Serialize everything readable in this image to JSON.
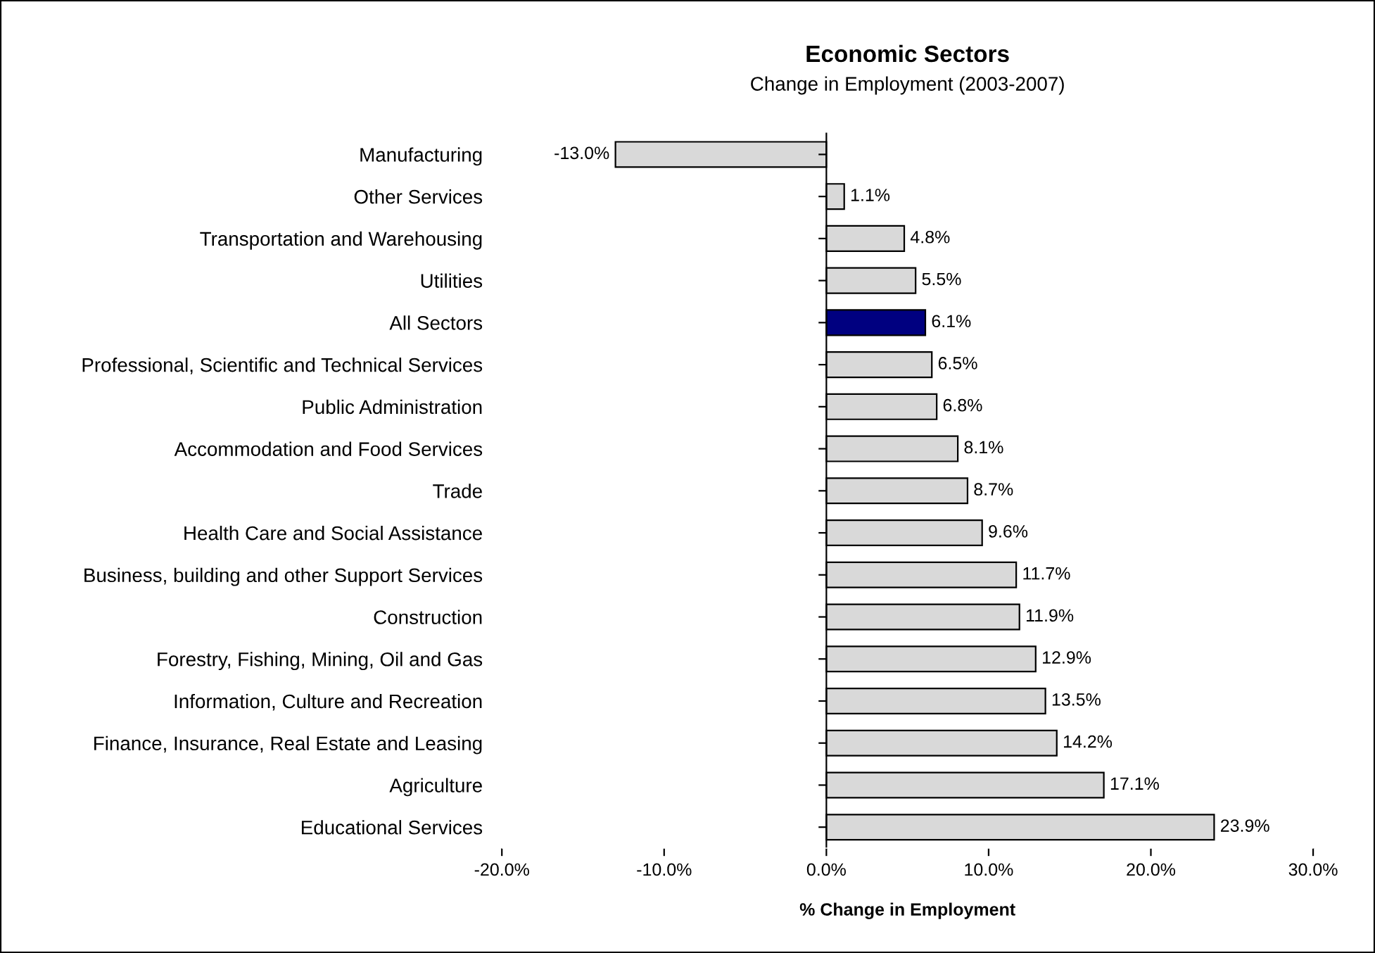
{
  "chart_data": {
    "type": "bar",
    "orientation": "horizontal",
    "title": "Economic Sectors",
    "subtitle": "Change in Employment (2003-2007)",
    "xlabel": "% Change in Employment",
    "categories": [
      "Manufacturing",
      "Other Services",
      "Transportation and Warehousing",
      "Utilities",
      "All Sectors",
      "Professional, Scientific and Technical Services",
      "Public Administration",
      "Accommodation and Food Services",
      "Trade",
      "Health Care and Social Assistance",
      "Business, building and other Support Services",
      "Construction",
      "Forestry, Fishing, Mining, Oil and Gas",
      "Information, Culture and Recreation",
      "Finance, Insurance, Real Estate and Leasing",
      "Agriculture",
      "Educational Services"
    ],
    "values": [
      -13.0,
      1.1,
      4.8,
      5.5,
      6.1,
      6.5,
      6.8,
      8.1,
      8.7,
      9.6,
      11.7,
      11.9,
      12.9,
      13.5,
      14.2,
      17.1,
      23.9
    ],
    "value_labels": [
      "-13.0%",
      "1.1%",
      "4.8%",
      "5.5%",
      "6.1%",
      "6.5%",
      "6.8%",
      "8.1%",
      "8.7%",
      "9.6%",
      "11.7%",
      "11.9%",
      "12.9%",
      "13.5%",
      "14.2%",
      "17.1%",
      "23.9%"
    ],
    "colors": [
      "#d9d9d9",
      "#d9d9d9",
      "#d9d9d9",
      "#d9d9d9",
      "#000080",
      "#d9d9d9",
      "#d9d9d9",
      "#d9d9d9",
      "#d9d9d9",
      "#d9d9d9",
      "#d9d9d9",
      "#d9d9d9",
      "#d9d9d9",
      "#d9d9d9",
      "#d9d9d9",
      "#d9d9d9",
      "#d9d9d9"
    ],
    "xlim": [
      -20,
      30
    ],
    "xticks": [
      {
        "value": -20,
        "label": "-20.0%"
      },
      {
        "value": -10,
        "label": "-10.0%"
      },
      {
        "value": 0,
        "label": "0.0%"
      },
      {
        "value": 10,
        "label": "10.0%"
      },
      {
        "value": 20,
        "label": "20.0%"
      },
      {
        "value": 30,
        "label": "30.0%"
      }
    ],
    "legend": false
  }
}
